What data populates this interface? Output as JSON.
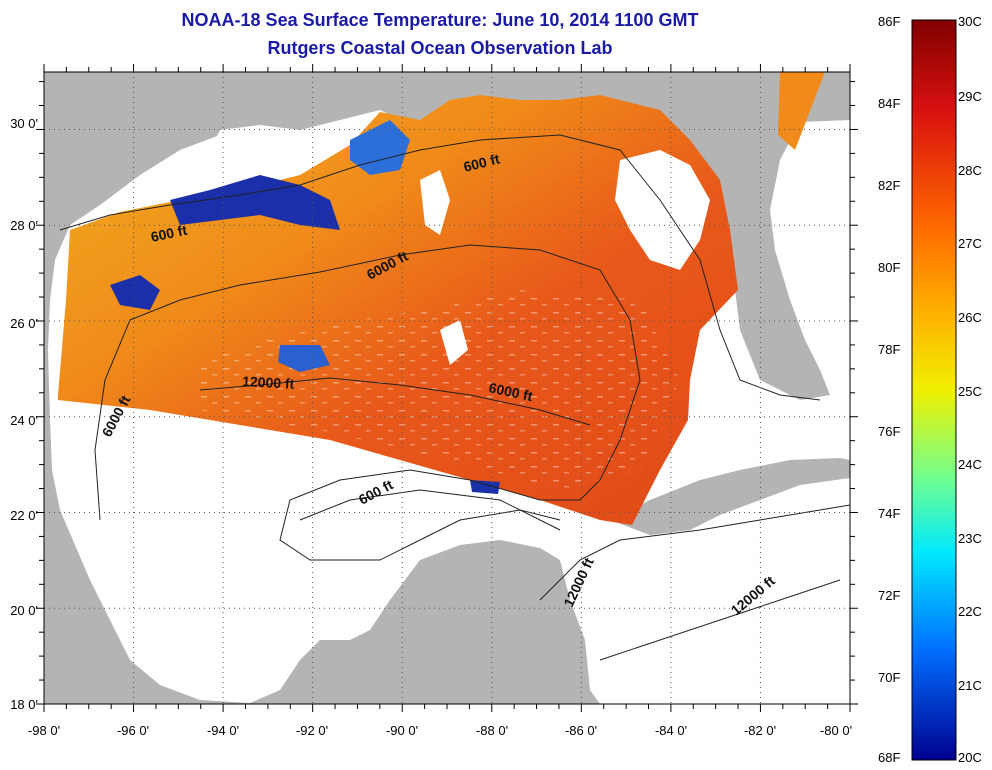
{
  "title": {
    "line1": "NOAA-18 Sea Surface Temperature:  June 10, 2014 1100 GMT",
    "line2": "Rutgers Coastal Ocean Observation Lab"
  },
  "axes": {
    "lon_labels": [
      "-98 0'",
      "-96 0'",
      "-94 0'",
      "-92 0'",
      "-90 0'",
      "-88 0'",
      "-86 0'",
      "-84 0'",
      "-82 0'",
      "-80 0'"
    ],
    "lat_labels": [
      "18 0'",
      "20 0'",
      "22 0'",
      "24 0'",
      "26 0'",
      "28 0'",
      "30 0'"
    ],
    "lon_range": [
      -98,
      -80
    ],
    "lat_range": [
      18,
      31.2
    ]
  },
  "contours": {
    "labels": [
      "600 ft",
      "6000 ft",
      "12000 ft",
      "6000 ft",
      "6000 ft",
      "600 ft",
      "600 ft",
      "12000 ft",
      "12000 ft"
    ]
  },
  "colorbar": {
    "fahrenheit": [
      "86F",
      "84F",
      "82F",
      "80F",
      "78F",
      "76F",
      "74F",
      "72F",
      "70F",
      "68F"
    ],
    "celsius": [
      "30C",
      "29C",
      "28C",
      "27C",
      "26C",
      "25C",
      "24C",
      "23C",
      "22C",
      "21C",
      "20C"
    ],
    "range_c": [
      20,
      30
    ]
  },
  "colors": {
    "land": "#b4b4b4",
    "ocean_nodata": "#ffffff",
    "title": "#1a1aa6"
  }
}
